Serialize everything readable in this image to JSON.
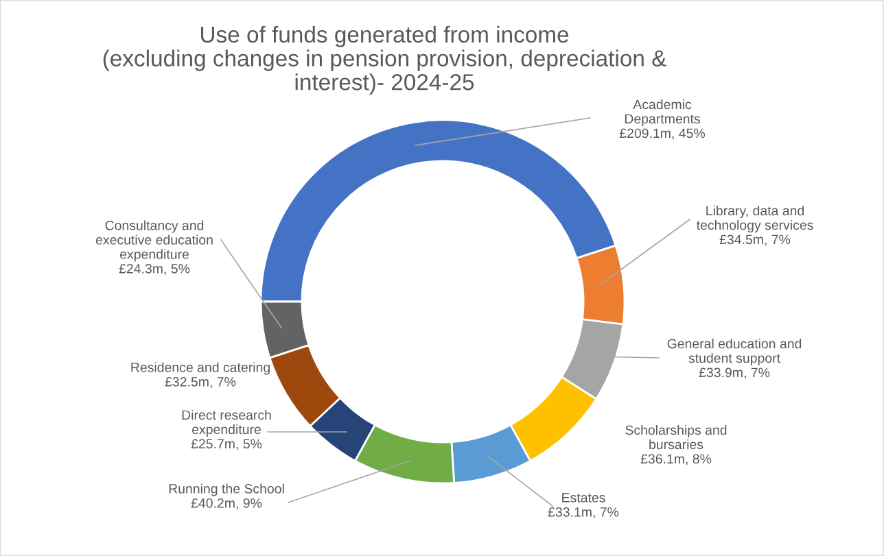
{
  "chart_data": {
    "type": "donut",
    "title": "Use of funds generated from income\n(excluding changes in pension provision, depreciation &\ninterest)- 2024-25",
    "categories": [
      "Academic Departments",
      "Library, data and technology services",
      "General education and student support",
      "Scholarships and bursaries",
      "Estates",
      "Running the School",
      "Direct research expenditure",
      "Residence and catering",
      "Consultancy and executive education expenditure"
    ],
    "values": [
      45,
      7,
      7,
      8,
      7,
      9,
      5,
      7,
      5
    ],
    "value_labels": [
      "£209.1m, 45%",
      "£34.5m, 7%",
      "£33.9m, 7%",
      "£36.1m, 8%",
      "£33.1m, 7%",
      "£40.2m, 9%",
      "£25.7m, 5%",
      "£32.5m, 7%",
      "£24.3m, 5%"
    ],
    "colors": [
      "#4472c4",
      "#ed7d31",
      "#a5a5a5",
      "#ffc000",
      "#5b9bd5",
      "#70ad47",
      "#264478",
      "#9e480e",
      "#636363"
    ]
  }
}
